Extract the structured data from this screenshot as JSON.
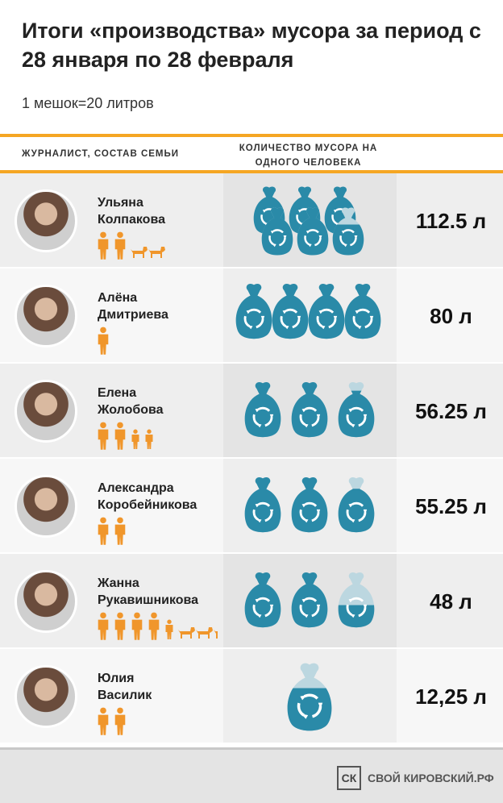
{
  "title": "Итоги «производства» мусора за период с 28 января по 28 февраля",
  "subtitle": "1 мешок=20 литров",
  "header": {
    "col_left": "ЖУРНАЛИСТ, СОСТАВ СЕМЬИ",
    "col_mid": "КОЛИЧЕСТВО МУСОРА НА ОДНОГО ЧЕЛОВЕКА"
  },
  "colors": {
    "accent": "#f5a623",
    "bag": "#2a8aa8",
    "bag_dark": "#1e5f78",
    "bag_empty": "#bcd7e0"
  },
  "chart_data": {
    "type": "table",
    "unit_note": "1 мешок=20 литров",
    "rows": [
      {
        "name_line1": "Ульяна",
        "name_line2": "Колпакова",
        "adults": 2,
        "children": 0,
        "dogs": 2,
        "bags": 5.625,
        "volume_label": "112.5 л"
      },
      {
        "name_line1": "Алёна",
        "name_line2": "Дмитриева",
        "adults": 1,
        "children": 0,
        "dogs": 0,
        "bags": 4,
        "volume_label": "80 л"
      },
      {
        "name_line1": "Елена",
        "name_line2": "Жолобова",
        "adults": 2,
        "children": 2,
        "dogs": 0,
        "bags": 2.8125,
        "volume_label": "56.25 л"
      },
      {
        "name_line1": "Александра",
        "name_line2": "Коробейникова",
        "adults": 2,
        "children": 0,
        "dogs": 0,
        "bags": 2.7625,
        "volume_label": "55.25 л"
      },
      {
        "name_line1": "Жанна",
        "name_line2": "Рукавишникова",
        "adults": 4,
        "children": 1,
        "dogs": 3,
        "bags": 2.4,
        "volume_label": "48 л"
      },
      {
        "name_line1": "Юлия",
        "name_line2": "Василик",
        "adults": 2,
        "children": 0,
        "dogs": 0,
        "bags": 0.6125,
        "volume_label": "12,25 л"
      }
    ]
  },
  "footer": {
    "logo_mark": "СК",
    "brand": "СВОЙ КИРОВСКИЙ.РФ"
  }
}
